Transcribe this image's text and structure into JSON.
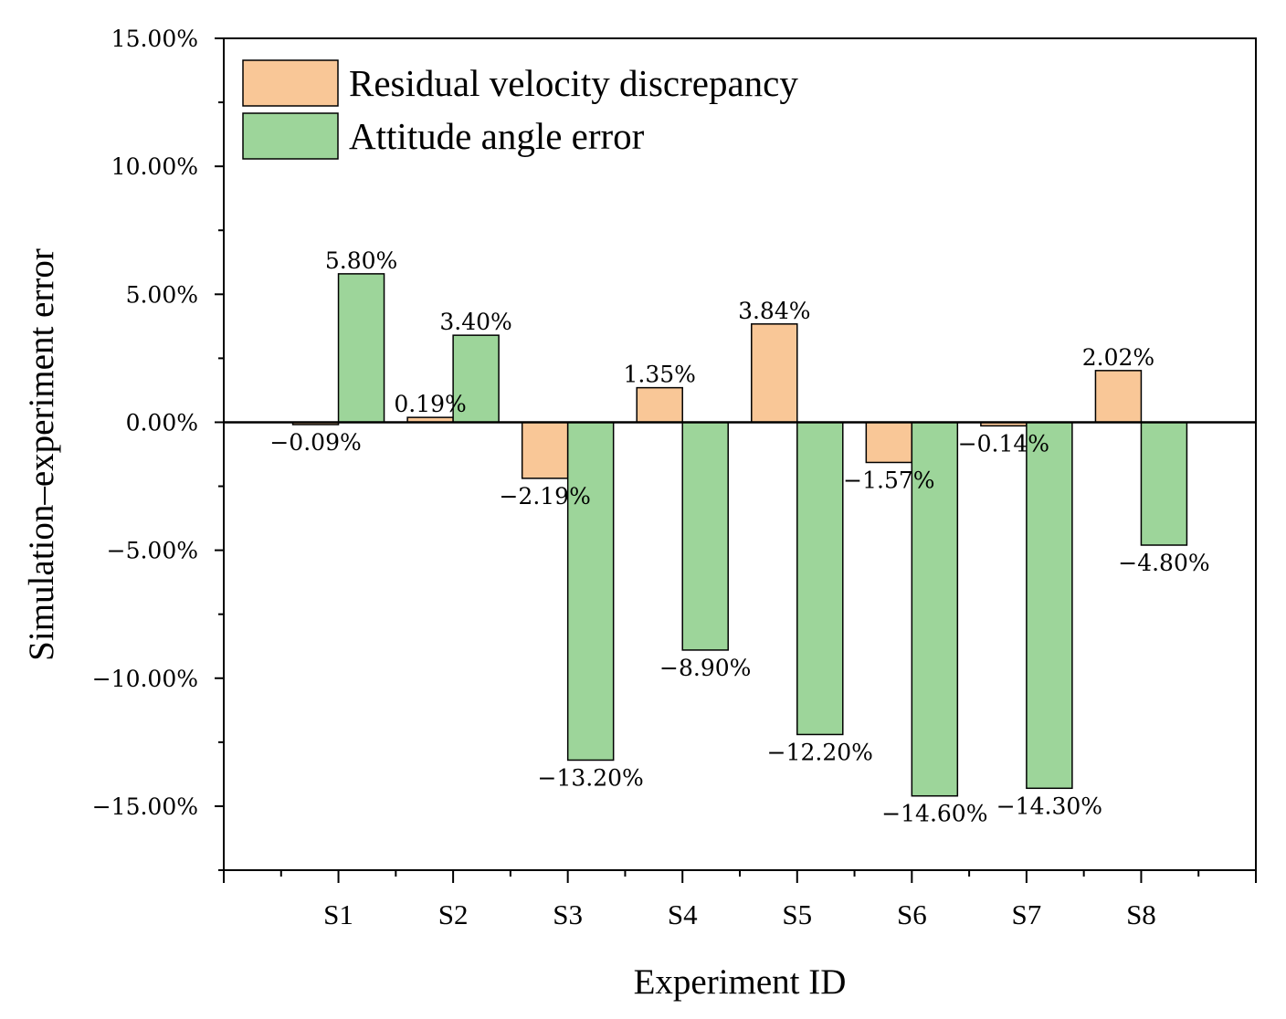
{
  "chart_data": {
    "type": "bar",
    "title": "",
    "xlabel": "Experiment ID",
    "ylabel": "Simulation–experiment error",
    "categories": [
      "S1",
      "S2",
      "S3",
      "S4",
      "S5",
      "S6",
      "S7",
      "S8"
    ],
    "ylim": [
      -17.5,
      15
    ],
    "yticks": [
      15,
      10,
      5,
      0,
      -5,
      -10,
      -15
    ],
    "ytick_labels": [
      "15.00%",
      "10.00%",
      "5.00%",
      "0.00%",
      "−5.00%",
      "−10.00%",
      "−15.00%"
    ],
    "grid": false,
    "legend_position": "top-left",
    "series": [
      {
        "name": "Residual velocity discrepancy",
        "color": "#F9C797",
        "values": [
          -0.09,
          0.19,
          -2.19,
          1.35,
          3.84,
          -1.57,
          -0.14,
          2.02
        ],
        "labels": [
          "−0.09%",
          "0.19%",
          "−2.19%",
          "1.35%",
          "3.84%",
          "−1.57%",
          "−0.14%",
          "2.02%"
        ]
      },
      {
        "name": "Attitude angle error",
        "color": "#9DD59A",
        "values": [
          5.8,
          3.4,
          -13.2,
          -8.9,
          -12.2,
          -14.6,
          -14.3,
          -4.8
        ],
        "labels": [
          "5.80%",
          "3.40%",
          "−13.20%",
          "−8.90%",
          "−12.20%",
          "−14.60%",
          "−14.30%",
          "−4.80%"
        ]
      }
    ]
  }
}
